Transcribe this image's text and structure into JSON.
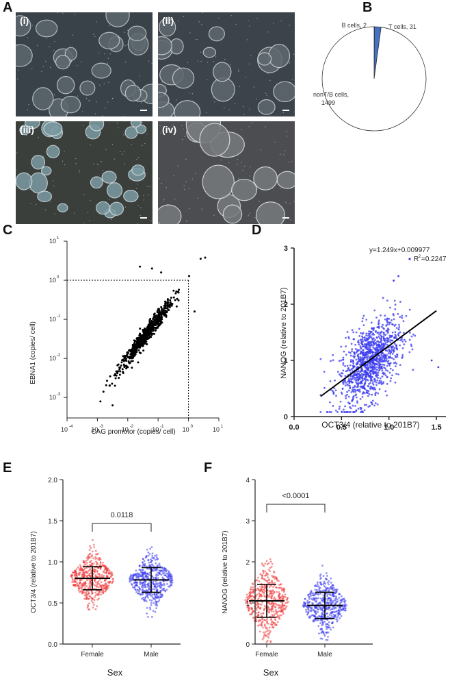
{
  "panels": {
    "A": "A",
    "B": "B",
    "C": "C",
    "D": "D",
    "E": "E",
    "F": "F"
  },
  "micrographs": [
    {
      "label": "(i)"
    },
    {
      "label": "(ii)"
    },
    {
      "label": "(iii)"
    },
    {
      "label": "(iv)"
    }
  ],
  "chart_data": [
    {
      "panel": "B",
      "type": "pie",
      "slices": [
        {
          "label": "B cells, 2",
          "value": 2,
          "color": "#4472c4"
        },
        {
          "label": "T cells, 31",
          "value": 31,
          "color": "#4472c4"
        },
        {
          "label": "nonT/B cells,",
          "label2": "1499",
          "value": 1499,
          "color": "#ffffff"
        }
      ]
    },
    {
      "panel": "C",
      "type": "scatter",
      "xscale": "log",
      "yscale": "log",
      "xlim": [
        0.0001,
        10
      ],
      "ylim": [
        0.0003,
        10
      ],
      "xlabel": "CAG promotor (copies/ cell)",
      "ylabel": "EBNA1 (copies/ cell)",
      "xticks": [
        "10",
        "10",
        "10",
        "10",
        "10",
        "10"
      ],
      "xtick_exp": [
        "-4",
        "-3",
        "-2",
        "-1",
        "0",
        "1"
      ],
      "yticks": [
        "10",
        "10",
        "10",
        "10",
        "10"
      ],
      "ytick_exp": [
        "-3",
        "-2",
        "-1",
        "0",
        "1"
      ],
      "reference_lines": {
        "x": 1,
        "y": 1
      },
      "point_color": "#000000"
    },
    {
      "panel": "D",
      "type": "scatter",
      "xlim": [
        0.0,
        1.6
      ],
      "ylim": [
        0,
        3
      ],
      "xlabel": "OCT3/4 (relative to 201B7)",
      "ylabel": "NANOG (relative to 201B7)",
      "xticks": [
        "0.0",
        "0.5",
        "1.0",
        "1.5"
      ],
      "yticks": [
        "0",
        "1",
        "2",
        "3"
      ],
      "annotation1": "y=1.249x+0.009977",
      "annotation2": "R",
      "annotation2_sup": "2",
      "annotation2_tail": "=0.2247",
      "regression": {
        "slope": 1.249,
        "intercept": 0.009977,
        "x_from": 0.28,
        "x_to": 1.5
      },
      "point_color": "#3a3aef"
    },
    {
      "panel": "E",
      "type": "scatter",
      "chart_kind": "dot-plot",
      "categories": [
        "Female",
        "Male"
      ],
      "xlabel": "Sex",
      "ylabel": "OCT3/4 (relative to 201B7)",
      "ylim": [
        0.0,
        2.0
      ],
      "yticks": [
        "0.0",
        "0.5",
        "1.0",
        "1.5",
        "2.0"
      ],
      "p_value": "0.0118",
      "series": [
        {
          "category": "Female",
          "mean": 0.8,
          "sd": 0.14,
          "min": 0.42,
          "max": 1.5,
          "color": "#ef3b3b"
        },
        {
          "category": "Male",
          "mean": 0.78,
          "sd": 0.15,
          "min": 0.33,
          "max": 1.23,
          "color": "#3b3bef"
        }
      ]
    },
    {
      "panel": "F",
      "type": "scatter",
      "chart_kind": "dot-plot",
      "categories": [
        "Female",
        "Male"
      ],
      "xlabel": "Sex",
      "ylabel": "NANOG (relative to 201B7)",
      "ylim": [
        0,
        4
      ],
      "yticks": [
        "0",
        "1",
        "2",
        "3",
        "4"
      ],
      "p_value": "<0.0001",
      "series": [
        {
          "category": "Female",
          "mean": 1.05,
          "sd": 0.4,
          "min": 0.05,
          "max": 3.0,
          "color": "#ef3b3b"
        },
        {
          "category": "Male",
          "mean": 0.94,
          "sd": 0.32,
          "min": 0.1,
          "max": 2.5,
          "color": "#3b3bef"
        }
      ]
    }
  ]
}
